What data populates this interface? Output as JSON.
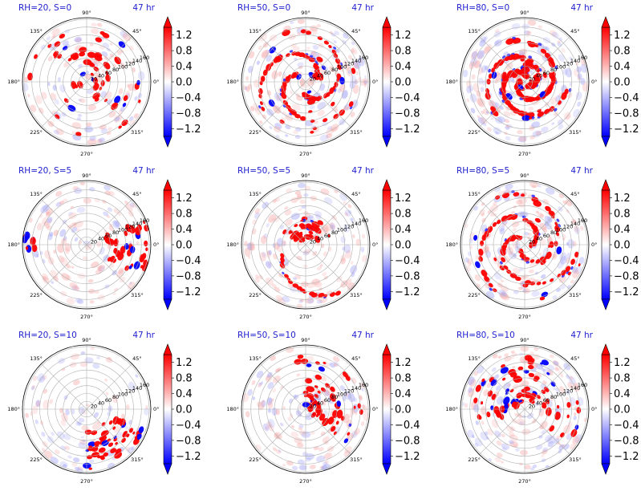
{
  "chart_data": [
    {
      "type": "heatmap",
      "projection": "polar",
      "title_left": "RH=20, S=0",
      "title_right": "47 hr",
      "angle_ticks": [
        "0°",
        "45°",
        "90°",
        "135°",
        "180°",
        "225°",
        "270°",
        "315°"
      ],
      "radial_ticks": [
        "20",
        "40",
        "60",
        "80",
        "100",
        "120",
        "140",
        "160"
      ],
      "colorbar": {
        "ticks": [
          "1.2",
          "0.8",
          "0.4",
          "0.0",
          "−0.4",
          "−0.8",
          "−1.2"
        ],
        "min": -1.4,
        "max": 1.4,
        "cmap": "bwr",
        "extend": "both"
      },
      "pattern": "scattered-cells"
    },
    {
      "type": "heatmap",
      "projection": "polar",
      "title_left": "RH=50, S=0",
      "title_right": "47 hr",
      "angle_ticks": [
        "0°",
        "45°",
        "90°",
        "135°",
        "180°",
        "225°",
        "270°",
        "315°"
      ],
      "radial_ticks": [
        "20",
        "40",
        "60",
        "80",
        "100",
        "120",
        "140",
        "160"
      ],
      "colorbar": {
        "ticks": [
          "1.2",
          "0.8",
          "0.4",
          "0.0",
          "−0.4",
          "−0.8",
          "−1.2"
        ],
        "min": -1.4,
        "max": 1.4,
        "cmap": "bwr",
        "extend": "both"
      },
      "pattern": "spiral-bands"
    },
    {
      "type": "heatmap",
      "projection": "polar",
      "title_left": "RH=80, S=0",
      "title_right": "47 hr",
      "angle_ticks": [
        "0°",
        "45°",
        "90°",
        "135°",
        "180°",
        "225°",
        "270°",
        "315°"
      ],
      "radial_ticks": [
        "20",
        "40",
        "60",
        "80",
        "100",
        "120",
        "140",
        "160"
      ],
      "colorbar": {
        "ticks": [
          "1.2",
          "0.8",
          "0.4",
          "0.0",
          "−0.4",
          "−0.8",
          "−1.2"
        ],
        "min": -1.4,
        "max": 1.4,
        "cmap": "bwr",
        "extend": "both"
      },
      "pattern": "tight-spiral"
    },
    {
      "type": "heatmap",
      "projection": "polar",
      "title_left": "RH=20, S=5",
      "title_right": "47 hr",
      "angle_ticks": [
        "0°",
        "45°",
        "90°",
        "135°",
        "180°",
        "225°",
        "270°",
        "315°"
      ],
      "radial_ticks": [
        "20",
        "40",
        "60",
        "80",
        "100",
        "120",
        "140",
        "160"
      ],
      "colorbar": {
        "ticks": [
          "1.2",
          "0.8",
          "0.4",
          "0.0",
          "−0.4",
          "−0.8",
          "−1.2"
        ],
        "min": -1.4,
        "max": 1.4,
        "cmap": "bwr",
        "extend": "both"
      },
      "pattern": "east-cluster"
    },
    {
      "type": "heatmap",
      "projection": "polar",
      "title_left": "RH=50, S=5",
      "title_right": "47 hr",
      "angle_ticks": [
        "0°",
        "45°",
        "90°",
        "135°",
        "180°",
        "225°",
        "270°",
        "315°"
      ],
      "radial_ticks": [
        "20",
        "40",
        "60",
        "80",
        "100",
        "120",
        "140",
        "160"
      ],
      "colorbar": {
        "ticks": [
          "1.2",
          "0.8",
          "0.4",
          "0.0",
          "−0.4",
          "−0.8",
          "−1.2"
        ],
        "min": -1.4,
        "max": 1.4,
        "cmap": "bwr",
        "extend": "both"
      },
      "pattern": "north-arc"
    },
    {
      "type": "heatmap",
      "projection": "polar",
      "title_left": "RH=80, S=5",
      "title_right": "47 hr",
      "angle_ticks": [
        "0°",
        "45°",
        "90°",
        "135°",
        "180°",
        "225°",
        "270°",
        "315°"
      ],
      "radial_ticks": [
        "20",
        "40",
        "60",
        "80",
        "100",
        "120",
        "140",
        "160"
      ],
      "colorbar": {
        "ticks": [
          "1.2",
          "0.8",
          "0.4",
          "0.0",
          "−0.4",
          "−0.8",
          "−1.2"
        ],
        "min": -1.4,
        "max": 1.4,
        "cmap": "bwr",
        "extend": "both"
      },
      "pattern": "spiral-arms"
    },
    {
      "type": "heatmap",
      "projection": "polar",
      "title_left": "RH=20, S=10",
      "title_right": "47 hr",
      "angle_ticks": [
        "0°",
        "45°",
        "90°",
        "135°",
        "180°",
        "225°",
        "270°",
        "315°"
      ],
      "radial_ticks": [
        "20",
        "40",
        "60",
        "80",
        "100",
        "120",
        "140",
        "160"
      ],
      "colorbar": {
        "ticks": [
          "1.2",
          "0.8",
          "0.4",
          "0.0",
          "−0.4",
          "−0.8",
          "−1.2"
        ],
        "min": -1.4,
        "max": 1.4,
        "cmap": "bwr",
        "extend": "both"
      },
      "pattern": "southeast-cluster"
    },
    {
      "type": "heatmap",
      "projection": "polar",
      "title_left": "RH=50, S=10",
      "title_right": "47 hr",
      "angle_ticks": [
        "0°",
        "45°",
        "90°",
        "135°",
        "180°",
        "225°",
        "270°",
        "315°"
      ],
      "radial_ticks": [
        "20",
        "40",
        "60",
        "80",
        "100",
        "120",
        "140",
        "160"
      ],
      "colorbar": {
        "ticks": [
          "1.2",
          "0.8",
          "0.4",
          "0.0",
          "−0.4",
          "−0.8",
          "−1.2"
        ],
        "min": -1.4,
        "max": 1.4,
        "cmap": "bwr",
        "extend": "both"
      },
      "pattern": "northeast-band"
    },
    {
      "type": "heatmap",
      "projection": "polar",
      "title_left": "RH=80, S=10",
      "title_right": "47 hr",
      "angle_ticks": [
        "0°",
        "45°",
        "90°",
        "135°",
        "180°",
        "225°",
        "270°",
        "315°"
      ],
      "radial_ticks": [
        "20",
        "40",
        "60",
        "80",
        "100",
        "120",
        "140",
        "160"
      ],
      "colorbar": {
        "ticks": [
          "1.2",
          "0.8",
          "0.4",
          "0.0",
          "−0.4",
          "−0.8",
          "−1.2"
        ],
        "min": -1.4,
        "max": 1.4,
        "cmap": "bwr",
        "extend": "both"
      },
      "pattern": "north-crescent"
    }
  ]
}
